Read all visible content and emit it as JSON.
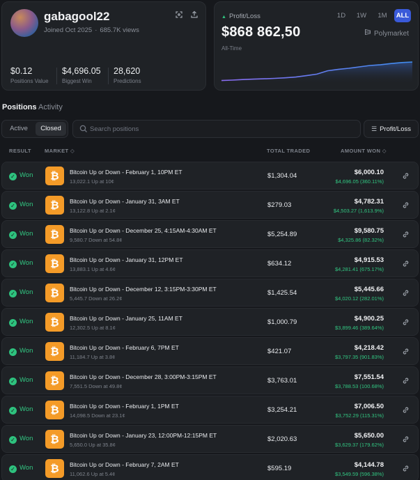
{
  "profile": {
    "username": "gabagool22",
    "joined": "Joined Oct 2025",
    "views": "685.7K views",
    "stats": [
      {
        "value": "$0.12",
        "label": "Positions Value"
      },
      {
        "value": "$4,696.05",
        "label": "Biggest Win"
      },
      {
        "value": "28,620",
        "label": "Predictions"
      }
    ],
    "icons": {
      "expand": "expand-icon",
      "share": "share-icon"
    }
  },
  "pnl": {
    "header": "Profit/Loss",
    "value": "$868 862,50",
    "period_label": "All-Time",
    "brand": "Polymarket",
    "ranges": [
      "1D",
      "1W",
      "1M",
      "ALL"
    ],
    "active_range": "ALL",
    "colors": {
      "up": "#2ec27e",
      "active_range": "#3a5ad9",
      "line_start": "#8a6cf0",
      "line_end": "#3f8ef0"
    }
  },
  "chart_data": {
    "type": "area",
    "title": "",
    "xlabel": "",
    "ylabel": "",
    "grid": false,
    "series": [
      {
        "values": [
          0.05,
          0.07,
          0.1,
          0.12,
          0.14,
          0.16,
          0.19,
          0.23,
          0.3,
          0.38,
          0.55,
          0.62,
          0.68,
          0.75,
          0.82,
          0.86,
          0.92,
          0.97,
          1.0
        ]
      }
    ]
  },
  "tabs": {
    "positions": "Positions",
    "activity": "Activity",
    "active": "Positions"
  },
  "filters": {
    "active": "Active",
    "closed": "Closed",
    "selected": "Closed"
  },
  "search": {
    "placeholder": "Search positions",
    "value": ""
  },
  "sort": {
    "label": "Profit/Loss"
  },
  "table": {
    "headers": {
      "result": "RESULT",
      "market": "MARKET ◇",
      "total": "TOTAL TRADED",
      "amount": "AMOUNT WON ◇"
    },
    "rows": [
      {
        "result": "Won",
        "title": "Bitcoin Up or Down - February 1, 10PM ET",
        "sub": "13,022.1 Up at 10¢",
        "total": "$1,304.04",
        "amount": "$6,000.10",
        "pct": "$4,696.05 (360.11%)"
      },
      {
        "result": "Won",
        "title": "Bitcoin Up or Down - January 31, 3AM ET",
        "sub": "13,122.8 Up at 2.1¢",
        "total": "$279.03",
        "amount": "$4,782.31",
        "pct": "$4,503.27 (1,613.9%)"
      },
      {
        "result": "Won",
        "title": "Bitcoin Up or Down - December 25, 4:15AM-4:30AM ET",
        "sub": "9,580.7 Down at 54.8¢",
        "total": "$5,254.89",
        "amount": "$9,580.75",
        "pct": "$4,325.86 (82.32%)"
      },
      {
        "result": "Won",
        "title": "Bitcoin Up or Down - January 31, 12PM ET",
        "sub": "13,883.1 Up at 4.6¢",
        "total": "$634.12",
        "amount": "$4,915.53",
        "pct": "$4,281.41 (675.17%)"
      },
      {
        "result": "Won",
        "title": "Bitcoin Up or Down - December 12, 3:15PM-3:30PM ET",
        "sub": "5,445.7 Down at 26.2¢",
        "total": "$1,425.54",
        "amount": "$5,445.66",
        "pct": "$4,020.12 (282.01%)"
      },
      {
        "result": "Won",
        "title": "Bitcoin Up or Down - January 25, 11AM ET",
        "sub": "12,302.5 Up at 8.1¢",
        "total": "$1,000.79",
        "amount": "$4,900.25",
        "pct": "$3,899.46 (389.64%)"
      },
      {
        "result": "Won",
        "title": "Bitcoin Up or Down - February 6, 7PM ET",
        "sub": "11,184.7 Up at 3.8¢",
        "total": "$421.07",
        "amount": "$4,218.42",
        "pct": "$3,797.35 (901.83%)"
      },
      {
        "result": "Won",
        "title": "Bitcoin Up or Down - December 28, 3:00PM-3:15PM ET",
        "sub": "7,551.5 Down at 49.8¢",
        "total": "$3,763.01",
        "amount": "$7,551.54",
        "pct": "$3,788.53 (100.68%)"
      },
      {
        "result": "Won",
        "title": "Bitcoin Up or Down - February 1, 1PM ET",
        "sub": "14,098.5 Down at 23.1¢",
        "total": "$3,254.21",
        "amount": "$7,006.50",
        "pct": "$3,752.29 (115.31%)"
      },
      {
        "result": "Won",
        "title": "Bitcoin Up or Down - January 23, 12:00PM-12:15PM ET",
        "sub": "5,650.0 Up at 35.8¢",
        "total": "$2,020.63",
        "amount": "$5,650.00",
        "pct": "$3,629.37 (179.62%)"
      },
      {
        "result": "Won",
        "title": "Bitcoin Up or Down - February 7, 2AM ET",
        "sub": "11,062.6 Up at 5.4¢",
        "total": "$595.19",
        "amount": "$4,144.78",
        "pct": "$3,549.59 (596.38%)"
      }
    ]
  }
}
